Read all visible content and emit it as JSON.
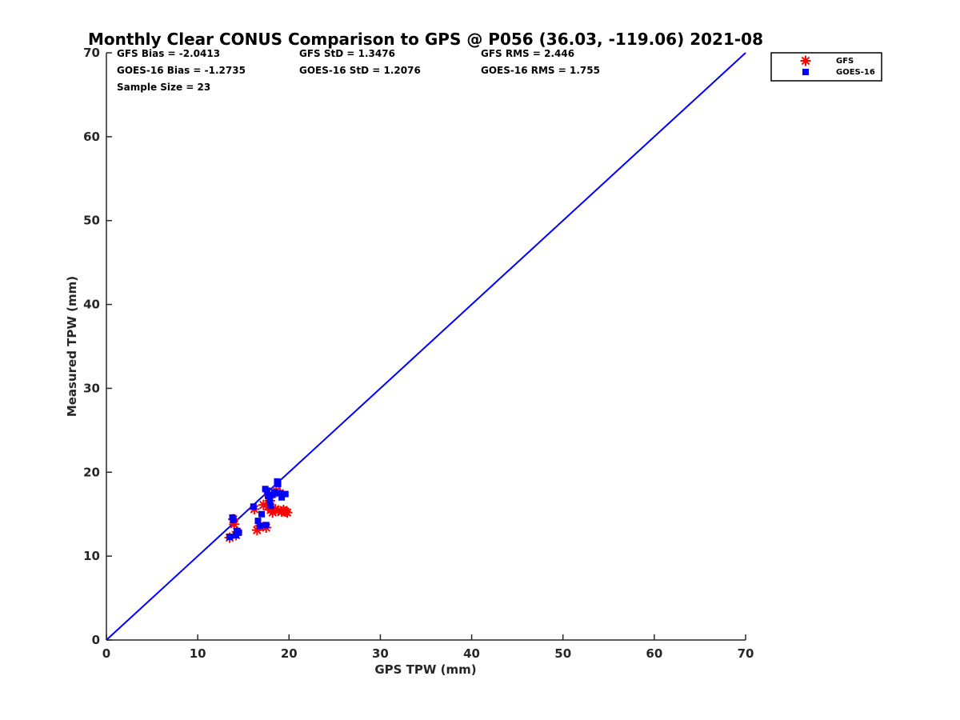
{
  "chart_data": {
    "type": "scatter",
    "title": "Monthly Clear CONUS Comparison to GPS @ P056 (36.03, -119.06) 2021-08",
    "xlabel": "GPS TPW (mm)",
    "ylabel": "Measured TPW (mm)",
    "xlim": [
      0,
      70
    ],
    "ylim": [
      0,
      70
    ],
    "xticks": [
      0,
      10,
      20,
      30,
      40,
      50,
      60,
      70
    ],
    "yticks": [
      0,
      10,
      20,
      30,
      40,
      50,
      60,
      70
    ],
    "grid": false,
    "legend_position": "outside top-right",
    "stats": [
      [
        "GFS Bias = -2.0413",
        "GFS StD = 1.3476",
        "GFS RMS = 2.446"
      ],
      [
        "GOES-16 Bias = -1.2735",
        "GOES-16 StD = 1.2076",
        "GOES-16 RMS = 1.755"
      ],
      [
        "Sample Size = 23"
      ]
    ],
    "reference_line": {
      "x": [
        0,
        70
      ],
      "y": [
        0,
        70
      ],
      "color": "#0000ff"
    },
    "series": [
      {
        "name": "GFS",
        "marker": "asterisk",
        "color": "#ff0000",
        "x": [
          13.5,
          13.9,
          14.2,
          14.0,
          16.2,
          16.5,
          16.8,
          17.2,
          17.5,
          17.7,
          17.8,
          17.9,
          18.0,
          18.2,
          18.5,
          18.6,
          18.8,
          19.0,
          19.2,
          19.4,
          19.6,
          19.8,
          14.3
        ],
        "y": [
          12.2,
          14.4,
          12.5,
          13.8,
          15.6,
          13.1,
          13.6,
          16.1,
          13.4,
          15.9,
          17.2,
          16.6,
          15.5,
          15.2,
          15.6,
          17.8,
          15.4,
          17.5,
          15.3,
          15.5,
          15.3,
          15.2,
          12.9
        ]
      },
      {
        "name": "GOES-16",
        "marker": "square",
        "color": "#0000ff",
        "x": [
          13.5,
          13.8,
          13.9,
          14.3,
          14.5,
          16.1,
          16.6,
          16.8,
          17.0,
          17.4,
          17.5,
          17.7,
          17.9,
          18.0,
          18.2,
          18.4,
          18.7,
          18.8,
          19.0,
          19.2,
          19.6,
          14.2,
          17.6
        ],
        "y": [
          12.3,
          14.6,
          14.3,
          13.0,
          12.8,
          15.9,
          14.2,
          13.6,
          15.0,
          18.0,
          13.7,
          17.2,
          16.6,
          16.0,
          17.3,
          17.6,
          18.9,
          18.6,
          17.5,
          17.0,
          17.4,
          12.5,
          17.8
        ]
      }
    ]
  }
}
